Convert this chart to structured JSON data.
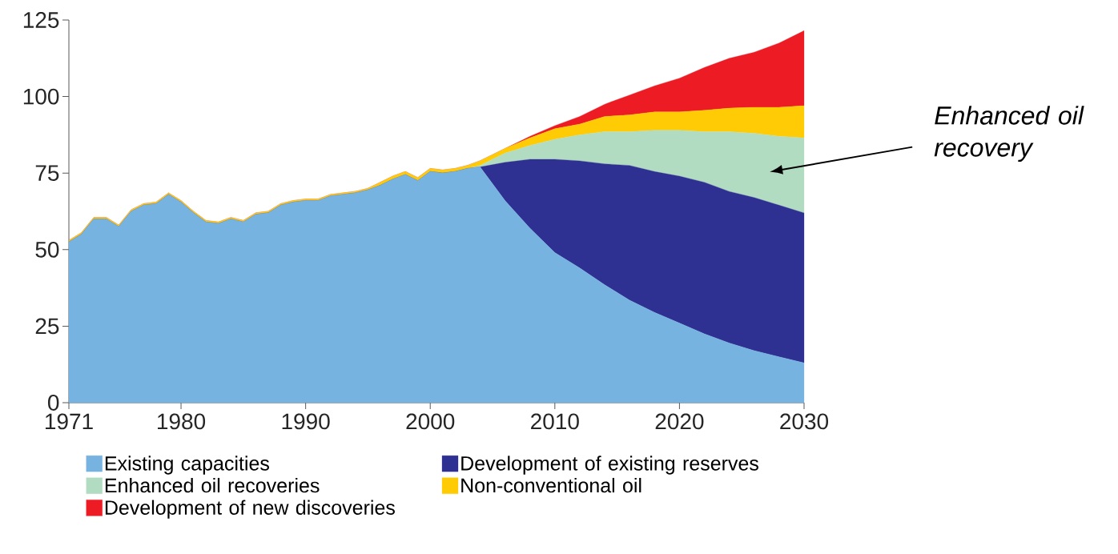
{
  "chart_data": {
    "type": "area",
    "stacked": true,
    "x": [
      1971,
      1972,
      1973,
      1974,
      1975,
      1976,
      1977,
      1978,
      1979,
      1980,
      1981,
      1982,
      1983,
      1984,
      1985,
      1986,
      1987,
      1988,
      1989,
      1990,
      1991,
      1992,
      1993,
      1994,
      1995,
      1996,
      1997,
      1998,
      1999,
      2000,
      2001,
      2002,
      2003,
      2004,
      2006,
      2008,
      2010,
      2012,
      2014,
      2016,
      2018,
      2020,
      2022,
      2024,
      2026,
      2028,
      2030
    ],
    "series": [
      {
        "name": "Existing capacities",
        "color": "#77b3e1",
        "values": [
          52.5,
          55,
          60,
          60,
          57.5,
          62.5,
          64.5,
          65,
          68,
          65.5,
          62,
          59,
          58.5,
          60,
          59,
          61.5,
          62,
          64.5,
          65.5,
          66,
          66,
          67.5,
          68,
          68.5,
          69.5,
          71,
          73,
          74.5,
          72.5,
          75.5,
          75,
          75.5,
          76.5,
          77,
          66,
          57,
          49,
          44,
          38.5,
          33.5,
          29.5,
          26,
          22.5,
          19.5,
          17,
          15,
          13
        ]
      },
      {
        "name": "Development of existing reserves",
        "color": "#2e3192",
        "values": [
          0,
          0,
          0,
          0,
          0,
          0,
          0,
          0,
          0,
          0,
          0,
          0,
          0,
          0,
          0,
          0,
          0,
          0,
          0,
          0,
          0,
          0,
          0,
          0,
          0,
          0,
          0,
          0,
          0,
          0,
          0,
          0,
          0,
          0,
          12.5,
          22.5,
          30.5,
          35,
          39.5,
          44,
          46,
          48,
          49.5,
          49.5,
          50,
          49.5,
          49
        ]
      },
      {
        "name": "Enhanced oil recoveries",
        "color": "#b2dcc2",
        "values": [
          0,
          0,
          0,
          0,
          0,
          0,
          0,
          0,
          0,
          0,
          0,
          0,
          0,
          0,
          0,
          0,
          0,
          0,
          0,
          0,
          0,
          0,
          0,
          0,
          0,
          0,
          0,
          0,
          0,
          0,
          0,
          0,
          0,
          0.5,
          3,
          4.5,
          6.5,
          8.5,
          10.5,
          11,
          13.5,
          15,
          16.5,
          19.5,
          21,
          22.5,
          24.5
        ]
      },
      {
        "name": "Non-conventional oil",
        "color": "#ffcb05",
        "values": [
          0.5,
          0.5,
          0.5,
          0.5,
          0.5,
          0.5,
          0.5,
          0.5,
          0.5,
          0.5,
          0.5,
          0.5,
          0.5,
          0.5,
          0.5,
          0.5,
          0.5,
          0.5,
          0.5,
          0.5,
          0.5,
          0.5,
          0.5,
          0.5,
          0.5,
          1,
          1,
          1,
          1,
          1,
          1,
          1,
          1,
          1.5,
          1.5,
          2.5,
          3.5,
          3.5,
          5,
          5.5,
          6,
          6,
          7,
          7.7,
          8.5,
          9.5,
          10.5
        ]
      },
      {
        "name": "Development of new discoveries",
        "color": "#ed1c24",
        "values": [
          0,
          0,
          0,
          0,
          0,
          0,
          0,
          0,
          0,
          0,
          0,
          0,
          0,
          0,
          0,
          0,
          0,
          0,
          0,
          0,
          0,
          0,
          0,
          0,
          0,
          0,
          0,
          0,
          0,
          0,
          0,
          0,
          0,
          0,
          0,
          0.5,
          1,
          2.5,
          4,
          6.5,
          8.5,
          11,
          14,
          16.3,
          18,
          21,
          24.5
        ]
      }
    ],
    "xlim": [
      1971,
      2030
    ],
    "xticks": [
      1971,
      1980,
      1990,
      2000,
      2010,
      2020,
      2030
    ],
    "ylim": [
      0,
      125
    ],
    "yticks": [
      0,
      25,
      50,
      75,
      100,
      125
    ],
    "legend": "bottom",
    "annotations": [
      "Enhanced oil recovery"
    ]
  }
}
